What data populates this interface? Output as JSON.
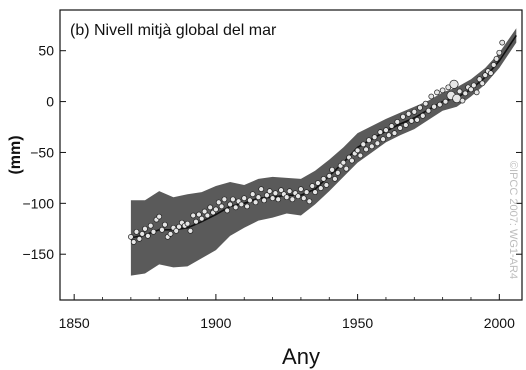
{
  "chart_data": {
    "type": "scatter",
    "title": "(b) Nivell mitjà global del mar",
    "xlabel": "Any",
    "ylabel": "(mm)",
    "copyright": "©IPCC 2007: WG1-AR4",
    "xlim": [
      1845,
      2008
    ],
    "ylim": [
      -195,
      90
    ],
    "xticks": [
      1850,
      1900,
      1950,
      2000
    ],
    "yticks": [
      -150,
      -100,
      -50,
      0,
      50
    ],
    "grid": false,
    "legend": "none",
    "colors": {
      "band": "#5a5a5a",
      "point_fill": "#e6e6e6",
      "point_stroke": "#222222",
      "smooth_line": "#111111"
    },
    "uncertainty_band": {
      "x": [
        1870,
        1875,
        1880,
        1885,
        1890,
        1895,
        1900,
        1905,
        1910,
        1915,
        1920,
        1925,
        1930,
        1935,
        1940,
        1945,
        1950,
        1955,
        1960,
        1965,
        1970,
        1975,
        1980,
        1985,
        1990,
        1995,
        2000,
        2006
      ],
      "upper": [
        -97,
        -97,
        -88,
        -94,
        -91,
        -89,
        -83,
        -79,
        -82,
        -76,
        -74,
        -75,
        -76,
        -68,
        -57,
        -45,
        -31,
        -24,
        -17,
        -11,
        -5,
        1,
        9,
        14,
        22,
        33,
        48,
        72
      ],
      "lower": [
        -171,
        -169,
        -160,
        -163,
        -162,
        -154,
        -146,
        -132,
        -124,
        -117,
        -114,
        -110,
        -112,
        -101,
        -88,
        -74,
        -60,
        -50,
        -40,
        -33,
        -27,
        -18,
        -9,
        -5,
        5,
        17,
        33,
        58
      ]
    },
    "smooth_line": {
      "x": [
        1870,
        1875,
        1880,
        1885,
        1890,
        1895,
        1900,
        1905,
        1910,
        1915,
        1920,
        1925,
        1930,
        1935,
        1940,
        1945,
        1950,
        1955,
        1960,
        1965,
        1970,
        1975,
        1980,
        1985,
        1990,
        1995,
        2000,
        2006
      ],
      "y": [
        -134,
        -131,
        -126,
        -126,
        -124,
        -118,
        -111,
        -103,
        -100,
        -95,
        -94,
        -92,
        -92,
        -86,
        -73,
        -60,
        -45,
        -37,
        -29,
        -22,
        -16,
        -8,
        0,
        4,
        12,
        24,
        40,
        65
      ]
    },
    "points": {
      "x": [
        1870,
        1871,
        1872,
        1873,
        1874,
        1875,
        1876,
        1877,
        1878,
        1879,
        1880,
        1881,
        1882,
        1883,
        1884,
        1885,
        1886,
        1887,
        1888,
        1889,
        1890,
        1891,
        1892,
        1893,
        1894,
        1895,
        1896,
        1897,
        1898,
        1899,
        1900,
        1901,
        1902,
        1903,
        1904,
        1905,
        1906,
        1907,
        1908,
        1909,
        1910,
        1911,
        1912,
        1913,
        1914,
        1915,
        1916,
        1917,
        1918,
        1919,
        1920,
        1921,
        1922,
        1923,
        1924,
        1925,
        1926,
        1927,
        1928,
        1929,
        1930,
        1931,
        1932,
        1933,
        1934,
        1935,
        1936,
        1937,
        1938,
        1939,
        1940,
        1941,
        1942,
        1943,
        1944,
        1945,
        1946,
        1947,
        1948,
        1949,
        1950,
        1951,
        1952,
        1953,
        1954,
        1955,
        1956,
        1957,
        1958,
        1959,
        1960,
        1961,
        1962,
        1963,
        1964,
        1965,
        1966,
        1967,
        1968,
        1969,
        1970,
        1971,
        1972,
        1973,
        1974,
        1975,
        1976,
        1977,
        1978,
        1979,
        1980,
        1981,
        1982,
        1983,
        1984,
        1985,
        1986,
        1987,
        1988,
        1989,
        1990,
        1991,
        1992,
        1993,
        1994,
        1995,
        1996,
        1997,
        1998,
        1999,
        2000,
        2001
      ],
      "y": [
        -133,
        -138,
        -128,
        -135,
        -130,
        -125,
        -132,
        -122,
        -128,
        -116,
        -113,
        -126,
        -121,
        -133,
        -130,
        -124,
        -127,
        -123,
        -119,
        -122,
        -120,
        -127,
        -112,
        -118,
        -111,
        -115,
        -108,
        -112,
        -104,
        -109,
        -106,
        -99,
        -103,
        -96,
        -107,
        -101,
        -96,
        -104,
        -98,
        -101,
        -95,
        -103,
        -97,
        -91,
        -99,
        -94,
        -86,
        -97,
        -92,
        -88,
        -95,
        -90,
        -96,
        -87,
        -91,
        -94,
        -88,
        -96,
        -90,
        -93,
        -86,
        -95,
        -89,
        -98,
        -83,
        -89,
        -80,
        -85,
        -76,
        -82,
        -73,
        -67,
        -76,
        -70,
        -63,
        -60,
        -66,
        -55,
        -58,
        -51,
        -48,
        -53,
        -42,
        -47,
        -38,
        -44,
        -35,
        -41,
        -30,
        -37,
        -28,
        -33,
        -24,
        -31,
        -20,
        -26,
        -15,
        -23,
        -12,
        -19,
        -10,
        -18,
        -6,
        -14,
        -2,
        -9,
        5,
        -5,
        9,
        -3,
        11,
        0,
        14,
        6,
        17,
        3,
        10,
        1,
        8,
        14,
        12,
        16,
        9,
        22,
        18,
        26,
        30,
        28,
        36,
        42,
        48,
        58
      ],
      "highlight_x": [
        1983,
        1984,
        1985
      ]
    }
  }
}
